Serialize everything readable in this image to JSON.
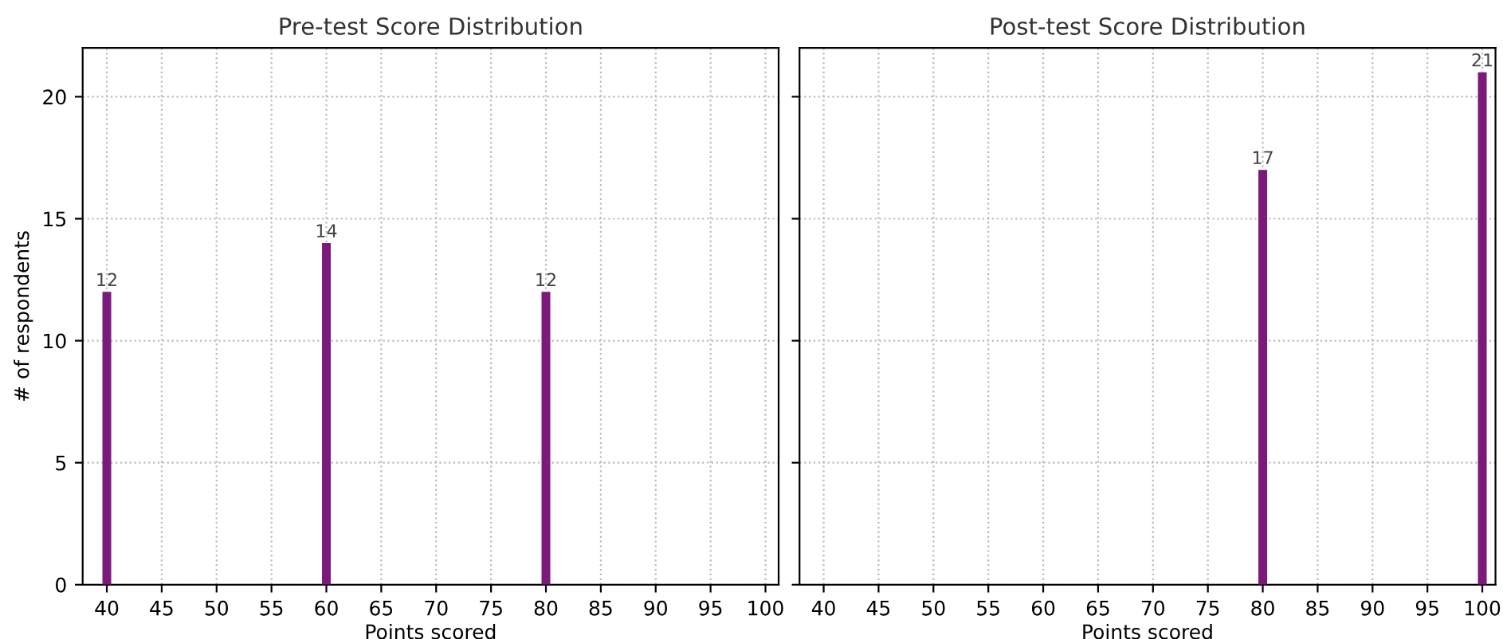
{
  "chart_data": [
    {
      "type": "bar",
      "title": "Pre-test Score Distribution",
      "xlabel": "Points scored",
      "ylabel": "# of respondents",
      "x": [
        40,
        60,
        80
      ],
      "values": [
        12,
        14,
        12
      ],
      "color": "#7b1a7b",
      "xlim": [
        37.8,
        101.2
      ],
      "xticks": [
        40,
        45,
        50,
        55,
        60,
        65,
        70,
        75,
        80,
        85,
        90,
        95,
        100
      ],
      "ylim": [
        0,
        22
      ],
      "yticks": [
        0,
        5,
        10,
        15,
        20
      ],
      "grid": true,
      "data_labels": true
    },
    {
      "type": "bar",
      "title": "Post-test Score Distribution",
      "xlabel": "Points scored",
      "x": [
        80,
        100
      ],
      "values": [
        17,
        21
      ],
      "color": "#7b1a7b",
      "xlim": [
        37.8,
        101.2
      ],
      "xticks": [
        40,
        45,
        50,
        55,
        60,
        65,
        70,
        75,
        80,
        85,
        90,
        95,
        100
      ],
      "ylim": [
        0,
        22
      ],
      "yticks": [
        0,
        5,
        10,
        15,
        20
      ],
      "grid": true,
      "data_labels": true,
      "tick_labels": "x"
    }
  ]
}
